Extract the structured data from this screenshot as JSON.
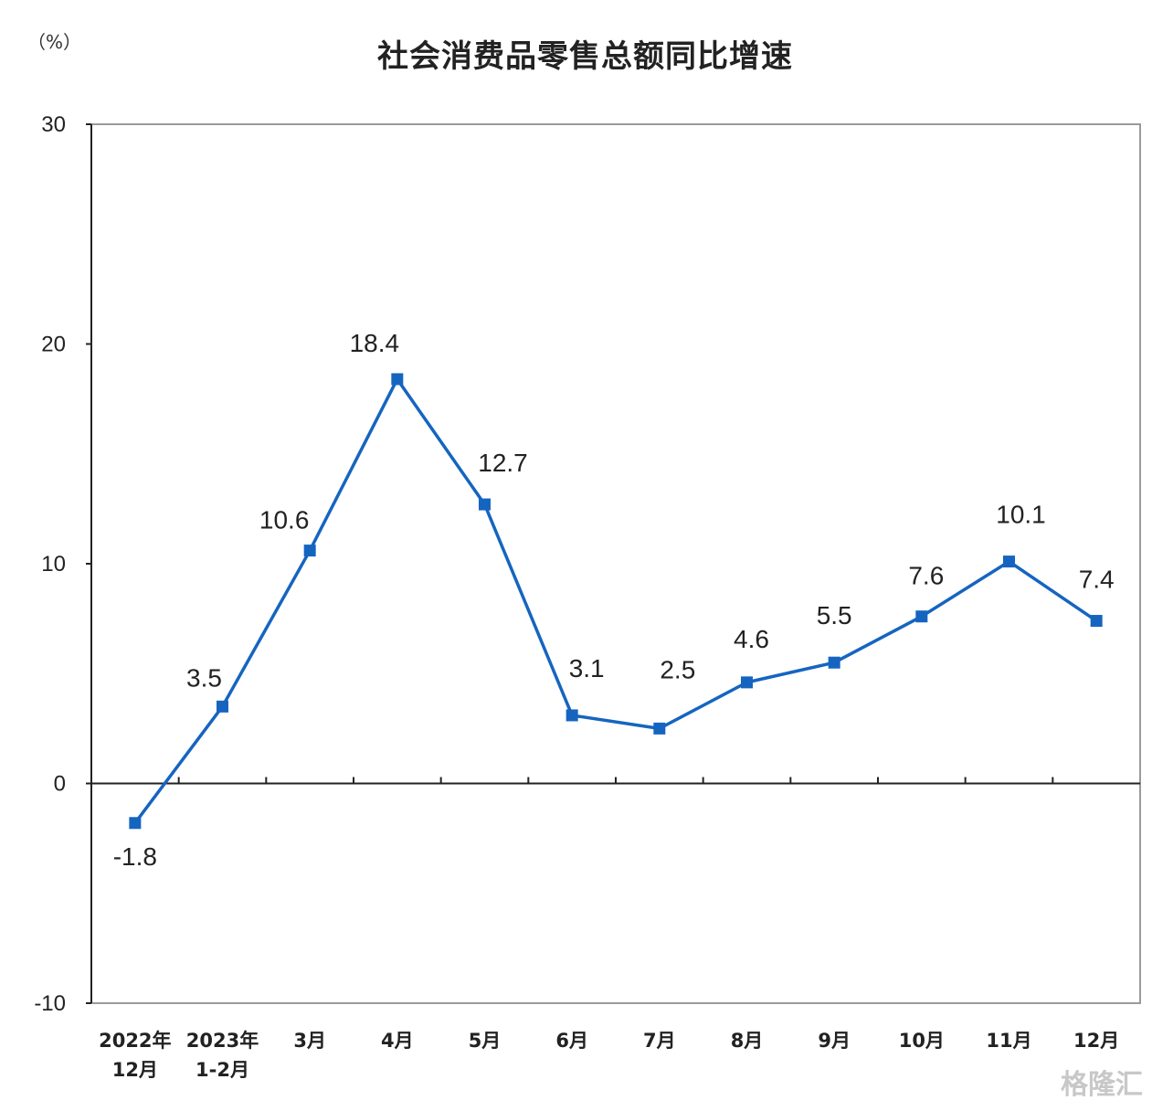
{
  "unit_label": "（%）",
  "title": "社会消费品零售总额同比增速",
  "watermark": "格隆汇",
  "chart_data": {
    "type": "line",
    "title": "社会消费品零售总额同比增速",
    "ylabel": "（%）",
    "xlabel": "",
    "ylim": [
      -10,
      30
    ],
    "yticks": [
      30,
      20,
      10,
      0,
      -10
    ],
    "grid": false,
    "legend": null,
    "categories": [
      "2022年\n12月",
      "2023年\n1-2月",
      "3月",
      "4月",
      "5月",
      "6月",
      "7月",
      "8月",
      "9月",
      "10月",
      "11月",
      "12月"
    ],
    "series": [
      {
        "name": "社会消费品零售总额同比增速",
        "color": "#1565c0",
        "marker": "square",
        "values": [
          -1.8,
          3.5,
          10.6,
          18.4,
          12.7,
          3.1,
          2.5,
          4.6,
          5.5,
          7.6,
          10.1,
          7.4
        ]
      }
    ]
  },
  "x_labels": [
    {
      "line1": "2022年",
      "line2": "12月"
    },
    {
      "line1": "2023年",
      "line2": "1-2月"
    },
    {
      "line1": "3月",
      "line2": ""
    },
    {
      "line1": "4月",
      "line2": ""
    },
    {
      "line1": "5月",
      "line2": ""
    },
    {
      "line1": "6月",
      "line2": ""
    },
    {
      "line1": "7月",
      "line2": ""
    },
    {
      "line1": "8月",
      "line2": ""
    },
    {
      "line1": "9月",
      "line2": ""
    },
    {
      "line1": "10月",
      "line2": ""
    },
    {
      "line1": "11月",
      "line2": ""
    },
    {
      "line1": "12月",
      "line2": ""
    }
  ],
  "data_labels": [
    "-1.8",
    "3.5",
    "10.6",
    "18.4",
    "12.7",
    "3.1",
    "2.5",
    "4.6",
    "5.5",
    "7.6",
    "10.1",
    "7.4"
  ]
}
